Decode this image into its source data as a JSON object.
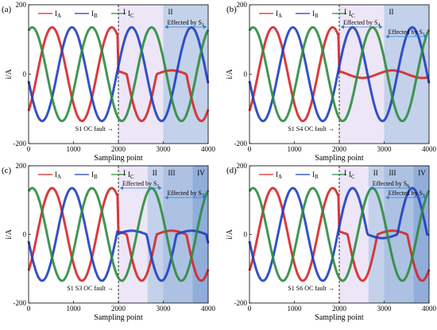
{
  "chart_data": [
    {
      "panel": "(a)",
      "type": "line",
      "xlabel": "Sampling point",
      "ylabel": "i/A",
      "xlim": [
        0,
        4000
      ],
      "ylim": [
        -200,
        200
      ],
      "xticks": [
        0,
        1000,
        2000,
        3000,
        4000
      ],
      "yticks": [
        -200,
        0,
        200
      ],
      "legend": [
        "I_A",
        "I_B",
        "I_C"
      ],
      "legend_placement": "top-left",
      "series": [
        {
          "name": "I_A",
          "color": "#d62728",
          "amplitude": 135,
          "phase_deg": 0
        },
        {
          "name": "I_B",
          "color": "#1f3fbf",
          "amplitude": 135,
          "phase_deg": -120
        },
        {
          "name": "I_C",
          "color": "#2e8b3e",
          "amplitude": 135,
          "phase_deg": 120
        }
      ],
      "period_samples": 1330,
      "fault_at": 2000,
      "fault_label": "S1 OC fault",
      "region_labels": [
        "I",
        "II"
      ],
      "region_bounds": [
        2000,
        3000,
        4000
      ],
      "effect_arrows": [
        {
          "label": "Effected by S1",
          "from": 3000,
          "to": 4000
        }
      ],
      "faulty_switches": [
        1
      ]
    },
    {
      "panel": "(b)",
      "type": "line",
      "xlabel": "Sampling point",
      "ylabel": "i/A",
      "xlim": [
        0,
        4000
      ],
      "ylim": [
        -200,
        200
      ],
      "xticks": [
        0,
        1000,
        2000,
        3000,
        4000
      ],
      "yticks": [
        -200,
        0,
        200
      ],
      "legend": [
        "I_A",
        "I_B",
        "I_C"
      ],
      "legend_placement": "top-left",
      "series": [
        {
          "name": "I_A",
          "color": "#d62728",
          "amplitude": 135,
          "phase_deg": 0
        },
        {
          "name": "I_B",
          "color": "#1f3fbf",
          "amplitude": 135,
          "phase_deg": -120
        },
        {
          "name": "I_C",
          "color": "#2e8b3e",
          "amplitude": 135,
          "phase_deg": 120
        }
      ],
      "period_samples": 1330,
      "fault_at": 2000,
      "fault_label": "S1 S4 OC fault",
      "region_labels": [
        "I",
        "II"
      ],
      "region_bounds": [
        2000,
        3000,
        4000
      ],
      "effect_arrows": [
        {
          "label": "Effected by S4",
          "from": 2000,
          "to": 3000
        },
        {
          "label": "Effected by S1",
          "from": 3000,
          "to": 4000
        }
      ],
      "faulty_switches": [
        1,
        4
      ]
    },
    {
      "panel": "(c)",
      "type": "line",
      "xlabel": "Sampling point",
      "ylabel": "i/A",
      "xlim": [
        0,
        4000
      ],
      "ylim": [
        -200,
        200
      ],
      "xticks": [
        0,
        1000,
        2000,
        3000,
        4000
      ],
      "yticks": [
        -200,
        0,
        200
      ],
      "legend": [
        "I_A",
        "I_B",
        "I_C"
      ],
      "legend_placement": "top-left",
      "series": [
        {
          "name": "I_A",
          "color": "#d62728",
          "amplitude": 135,
          "phase_deg": 0
        },
        {
          "name": "I_B",
          "color": "#1f3fbf",
          "amplitude": 135,
          "phase_deg": -120
        },
        {
          "name": "I_C",
          "color": "#2e8b3e",
          "amplitude": 135,
          "phase_deg": 120
        }
      ],
      "period_samples": 1330,
      "fault_at": 2000,
      "fault_label": "S1 S3 OC fault",
      "region_labels": [
        "I",
        "II",
        "III",
        "IV"
      ],
      "region_bounds": [
        2000,
        2650,
        3000,
        3650,
        4000
      ],
      "effect_arrows": [
        {
          "label": "Effected by S1",
          "from": 2000,
          "to": 3000
        },
        {
          "label": "Effected by S3",
          "from": 3000,
          "to": 4000
        }
      ],
      "faulty_switches": [
        1,
        3
      ]
    },
    {
      "panel": "(d)",
      "type": "line",
      "xlabel": "Sampling point",
      "ylabel": "i/A",
      "xlim": [
        0,
        4000
      ],
      "ylim": [
        -200,
        200
      ],
      "xticks": [
        0,
        1000,
        2000,
        3000,
        4000
      ],
      "yticks": [
        -200,
        0,
        200
      ],
      "legend": [
        "I_A",
        "I_B",
        "I_C"
      ],
      "legend_placement": "top-left",
      "series": [
        {
          "name": "I_A",
          "color": "#d62728",
          "amplitude": 135,
          "phase_deg": 0
        },
        {
          "name": "I_B",
          "color": "#1f3fbf",
          "amplitude": 135,
          "phase_deg": -120
        },
        {
          "name": "I_C",
          "color": "#2e8b3e",
          "amplitude": 135,
          "phase_deg": 120
        }
      ],
      "period_samples": 1330,
      "fault_at": 2000,
      "fault_label": "S1 S6 OC fault",
      "region_labels": [
        "I",
        "II",
        "III",
        "IV"
      ],
      "region_bounds": [
        2000,
        2650,
        3000,
        3650,
        4000
      ],
      "effect_arrows": [
        {
          "label": "Effected by S6",
          "from": 2650,
          "to": 3650
        },
        {
          "label": "Effected by S1",
          "from": 3000,
          "to": 4000
        }
      ],
      "faulty_switches": [
        1,
        6
      ]
    }
  ],
  "colors": {
    "region1": "#e9e2f4",
    "region2": "#b9c9e6",
    "region3": "#9fb6de",
    "region4": "#7e9fd2",
    "arrow": "#2a7fd4"
  }
}
